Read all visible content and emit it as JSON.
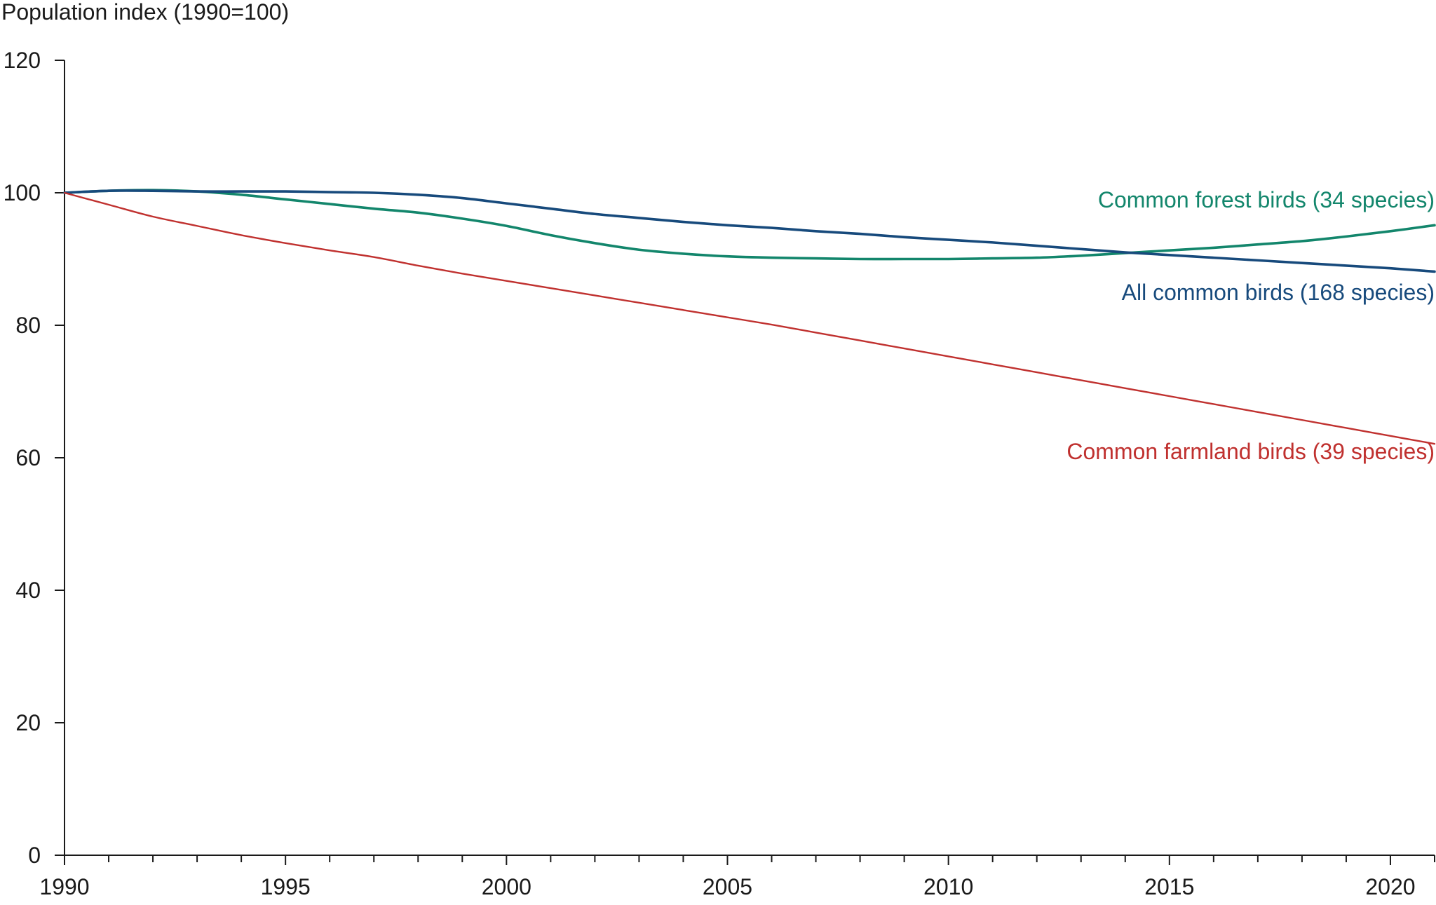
{
  "chart_data": {
    "type": "line",
    "title": "",
    "xlabel": "",
    "ylabel": "Population index (1990=100)",
    "xlim": [
      1990,
      2021
    ],
    "ylim": [
      0,
      120
    ],
    "y_ticks": [
      0,
      20,
      40,
      60,
      80,
      100,
      120
    ],
    "x_major_ticks": [
      1990,
      1995,
      2000,
      2005,
      2010,
      2015,
      2020
    ],
    "grid": false,
    "legend": "inline labels at right end of lines",
    "x": [
      1990,
      1991,
      1992,
      1993,
      1994,
      1995,
      1996,
      1997,
      1998,
      1999,
      2000,
      2001,
      2002,
      2003,
      2004,
      2005,
      2006,
      2007,
      2008,
      2009,
      2010,
      2011,
      2012,
      2013,
      2014,
      2015,
      2016,
      2017,
      2018,
      2019,
      2020,
      2021
    ],
    "series": [
      {
        "name": "Common forest birds (34 species)",
        "color": "#13866c",
        "values": [
          100,
          100.3,
          100.4,
          100.2,
          99.7,
          99.0,
          98.3,
          97.6,
          97.0,
          96.1,
          95.0,
          93.6,
          92.4,
          91.4,
          90.8,
          90.4,
          90.2,
          90.1,
          90.0,
          90.0,
          90.0,
          90.1,
          90.2,
          90.5,
          90.9,
          91.3,
          91.7,
          92.2,
          92.7,
          93.4,
          94.2,
          95.1
        ]
      },
      {
        "name": "All common birds (168 species)",
        "color": "#174a7c",
        "values": [
          100,
          100.3,
          100.3,
          100.2,
          100.2,
          100.2,
          100.1,
          100.0,
          99.7,
          99.2,
          98.4,
          97.6,
          96.8,
          96.2,
          95.6,
          95.1,
          94.7,
          94.2,
          93.8,
          93.3,
          92.9,
          92.5,
          92.0,
          91.5,
          91.0,
          90.6,
          90.2,
          89.8,
          89.4,
          89.0,
          88.6,
          88.1
        ]
      },
      {
        "name": "Common farmland birds (39 species)",
        "color": "#c0312f",
        "values": [
          100,
          98.2,
          96.4,
          95.0,
          93.6,
          92.4,
          91.3,
          90.3,
          89.0,
          87.8,
          86.7,
          85.6,
          84.5,
          83.4,
          82.3,
          81.2,
          80.1,
          78.9,
          77.7,
          76.5,
          75.3,
          74.1,
          72.9,
          71.7,
          70.5,
          69.3,
          68.1,
          66.9,
          65.7,
          64.5,
          63.3,
          62.1
        ]
      }
    ]
  }
}
